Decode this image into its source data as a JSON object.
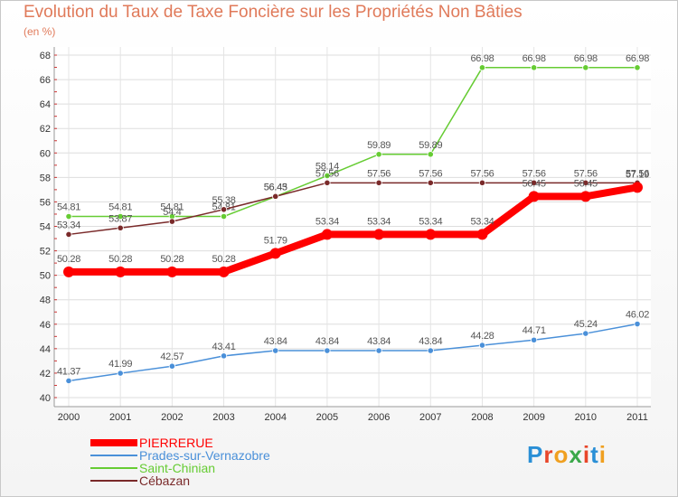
{
  "header": {
    "title": "Evolution du Taux de Taxe Foncière sur les Propriétés Non Bâties",
    "subtitle": "(en %)"
  },
  "logo": {
    "text": "Proxiti",
    "colors": [
      "#2a8fd6",
      "#e8462a",
      "#f0a020",
      "#3aa84a",
      "#e8462a",
      "#2a8fd6",
      "#f0a020"
    ]
  },
  "chart_data": {
    "type": "line",
    "x": [
      "2000",
      "2001",
      "2002",
      "2003",
      "2004",
      "2005",
      "2006",
      "2007",
      "2008",
      "2009",
      "2010",
      "2011"
    ],
    "ylim": [
      40,
      68
    ],
    "yticks": [
      40,
      42,
      44,
      46,
      48,
      50,
      52,
      54,
      56,
      58,
      60,
      62,
      64,
      66,
      68
    ],
    "grid": true,
    "legend_position": "bottom-left",
    "series": [
      {
        "name": "PIERRERUE",
        "color": "#ff0000",
        "values": [
          50.28,
          50.28,
          50.28,
          50.28,
          51.79,
          53.34,
          53.34,
          53.34,
          53.34,
          56.45,
          56.45,
          57.19
        ],
        "labels": [
          "50.28",
          "50.28",
          "50.28",
          "50.28",
          "51.79",
          "53.34",
          "53.34",
          "53.34",
          "53.34",
          "56.45",
          "56.45",
          "57.19"
        ]
      },
      {
        "name": "Prades-sur-Vernazobre",
        "color": "#4a90d9",
        "values": [
          41.37,
          41.99,
          42.57,
          43.41,
          43.84,
          43.84,
          43.84,
          43.84,
          44.28,
          44.71,
          45.24,
          46.02
        ],
        "labels": [
          "41.37",
          "41.99",
          "42.57",
          "43.41",
          "43.84",
          "43.84",
          "43.84",
          "43.84",
          "44.28",
          "44.71",
          "45.24",
          "46.02"
        ]
      },
      {
        "name": "Saint-Chinian",
        "color": "#66cc33",
        "values": [
          54.81,
          54.81,
          54.81,
          54.81,
          56.43,
          58.14,
          59.89,
          59.89,
          66.98,
          66.98,
          66.98,
          66.98
        ],
        "labels": [
          "54.81",
          "54.81",
          "54.81",
          "54.81",
          "56.43",
          "58.14",
          "59.89",
          "59.89",
          "66.98",
          "66.98",
          "66.98",
          "66.98"
        ]
      },
      {
        "name": "Cébazan",
        "color": "#7a2a2a",
        "values": [
          53.34,
          53.87,
          54.4,
          55.38,
          56.45,
          57.56,
          57.56,
          57.56,
          57.56,
          57.56,
          57.56,
          57.56
        ],
        "labels": [
          "53.34",
          "53.87",
          "54.4",
          "55.38",
          "56.45",
          "57.56",
          "57.56",
          "57.56",
          "57.56",
          "57.56",
          "57.56",
          "57.56"
        ]
      }
    ]
  }
}
